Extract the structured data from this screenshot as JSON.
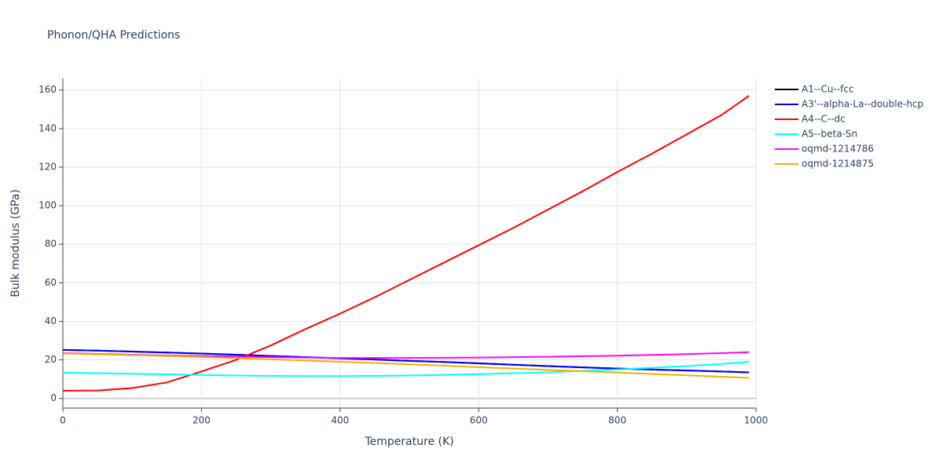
{
  "chart_data": {
    "type": "line",
    "title": "Phonon/QHA Predictions",
    "x_label": "Temperature (K)",
    "y_label": "Bulk modulus (GPa)",
    "x": [
      0,
      50,
      100,
      150,
      200,
      250,
      300,
      350,
      400,
      450,
      500,
      550,
      600,
      650,
      700,
      750,
      800,
      850,
      900,
      950,
      990
    ],
    "series": [
      {
        "name": "A1--Cu--fcc",
        "color": "#000000",
        "values": [
          25.2,
          24.8,
          24.3,
          23.8,
          23.3,
          22.7,
          22.0,
          21.4,
          20.8,
          20.2,
          19.5,
          18.9,
          18.2,
          17.5,
          16.8,
          16.1,
          15.5,
          15.0,
          14.5,
          14.0,
          13.5
        ]
      },
      {
        "name": "A3'--alpha-La--double-hcp",
        "color": "#0000ff",
        "values": [
          25.2,
          24.8,
          24.3,
          23.8,
          23.3,
          22.7,
          22.0,
          21.4,
          20.8,
          20.2,
          19.5,
          18.9,
          18.2,
          17.5,
          16.8,
          16.1,
          15.5,
          15.0,
          14.5,
          14.0,
          13.5
        ]
      },
      {
        "name": "A4--C--dc",
        "color": "#ff0000",
        "values": [
          4.0,
          4.1,
          5.4,
          8.3,
          14,
          20,
          27.5,
          36,
          44,
          52.5,
          61.5,
          70.5,
          79.5,
          88.5,
          98,
          107.5,
          117.5,
          127,
          137,
          147,
          157
        ]
      },
      {
        "name": "A5--beta-Sn",
        "color": "#00ffff",
        "values": [
          13.3,
          13.1,
          12.8,
          12.5,
          12.2,
          11.9,
          11.7,
          11.6,
          11.6,
          11.7,
          11.9,
          12.2,
          12.6,
          13.1,
          13.6,
          14.3,
          15.0,
          15.9,
          16.8,
          17.9,
          19.0
        ]
      },
      {
        "name": "oqmd-1214786",
        "color": "#ff00ff",
        "values": [
          23.5,
          23.1,
          22.7,
          22.3,
          22.0,
          21.7,
          21.4,
          21.2,
          21.0,
          21.0,
          21.0,
          21.1,
          21.2,
          21.4,
          21.6,
          21.9,
          22.2,
          22.6,
          23.0,
          23.5,
          24.0
        ]
      },
      {
        "name": "oqmd-1214875",
        "color": "#f0b000",
        "values": [
          23.3,
          22.9,
          22.5,
          22.0,
          21.5,
          20.9,
          20.3,
          19.7,
          19.0,
          18.4,
          17.7,
          17.0,
          16.2,
          15.5,
          14.8,
          14.1,
          13.4,
          12.7,
          12.0,
          11.3,
          10.7
        ]
      }
    ],
    "xlim": [
      0,
      1000
    ],
    "xticks": [
      0,
      200,
      400,
      600,
      800,
      1000
    ],
    "ylim": [
      -5,
      166
    ],
    "yticks": [
      0,
      20,
      40,
      60,
      80,
      100,
      120,
      140,
      160
    ],
    "grid": true,
    "legend": "right"
  }
}
